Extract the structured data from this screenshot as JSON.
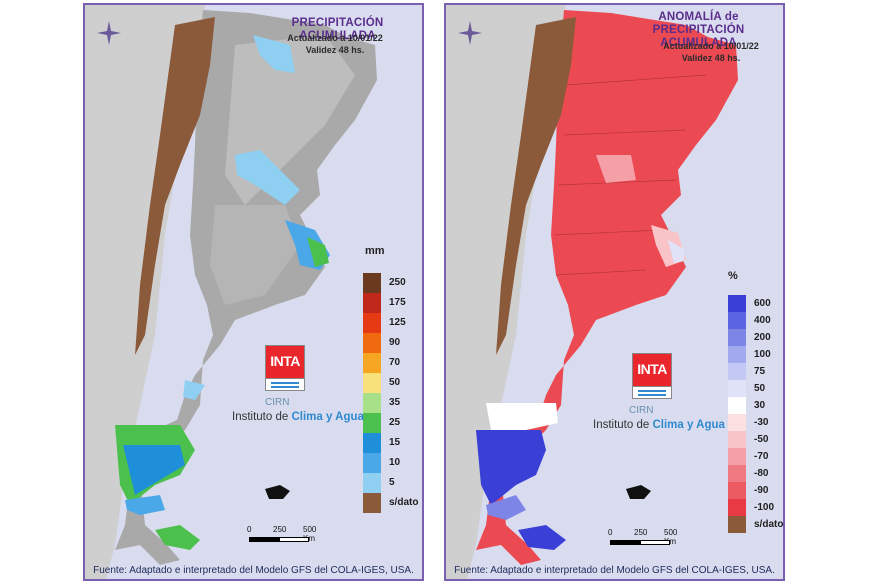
{
  "left_panel": {
    "title": "PRECIPITACIÓN ACUMULADA",
    "updated": "Actualizado a 10/01/22",
    "validity": "Validez 48 hs.",
    "unit": "mm",
    "legend": [
      {
        "label": "250",
        "color": "#6b3a1e"
      },
      {
        "label": "175",
        "color": "#c0281c"
      },
      {
        "label": "125",
        "color": "#e63a14"
      },
      {
        "label": "90",
        "color": "#f26a10"
      },
      {
        "label": "70",
        "color": "#f6a623"
      },
      {
        "label": "50",
        "color": "#f8e07a"
      },
      {
        "label": "35",
        "color": "#a8e08a"
      },
      {
        "label": "25",
        "color": "#4cc04c"
      },
      {
        "label": "15",
        "color": "#1e8fd8"
      },
      {
        "label": "10",
        "color": "#4aa8e8"
      },
      {
        "label": "5",
        "color": "#8fd0f2"
      },
      {
        "label": "s/dato",
        "color": "#8a5a3a"
      }
    ],
    "source": "Fuente: Adaptado e interpretado del Modelo GFS del COLA-IGES, USA."
  },
  "right_panel": {
    "title_line1": "ANOMALÍA de",
    "title_line2": "PRECIPITACIÓN ACUMULADA",
    "updated": "Actualizado a 10/01/22",
    "validity": "Validez 48 hs.",
    "unit": "%",
    "legend": [
      {
        "label": "600",
        "color": "#3a3fd6"
      },
      {
        "label": "400",
        "color": "#5a63e0"
      },
      {
        "label": "200",
        "color": "#7d86e6"
      },
      {
        "label": "100",
        "color": "#a3a9ee"
      },
      {
        "label": "75",
        "color": "#c4c8f4"
      },
      {
        "label": "50",
        "color": "#e0e2f8"
      },
      {
        "label": "30",
        "color": "#ffffff"
      },
      {
        "label": "-30",
        "color": "#fbe0e2"
      },
      {
        "label": "-50",
        "color": "#f8c4c8"
      },
      {
        "label": "-70",
        "color": "#f4a0a6"
      },
      {
        "label": "-80",
        "color": "#f07a82"
      },
      {
        "label": "-90",
        "color": "#ec5a62"
      },
      {
        "label": "-100",
        "color": "#e83a44"
      },
      {
        "label": "s/dato",
        "color": "#8a5a3a"
      }
    ],
    "source": "Fuente: Adaptado e interpretado del Modelo GFS del COLA-IGES, USA."
  },
  "logo": {
    "inta": "INTA",
    "cirn": "CIRN",
    "institute_prefix": "Instituto de ",
    "institute_highlight": "Clima y Agua"
  },
  "scale": {
    "t0": "0",
    "t1": "250",
    "t2": "500 Km"
  }
}
